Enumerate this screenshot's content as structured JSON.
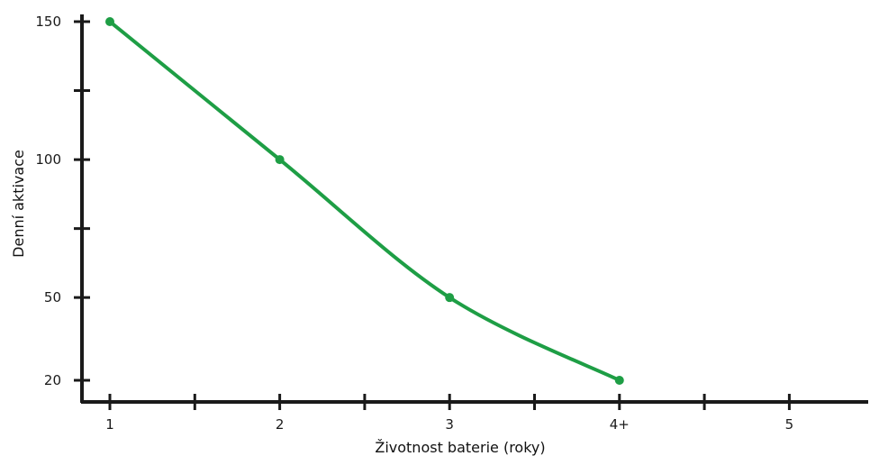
{
  "chart_data": {
    "type": "line",
    "xlabel": "Životnost baterie (roky)",
    "ylabel": "Denní aktivace",
    "x_ticks": [
      {
        "value": 1,
        "label": "1"
      },
      {
        "value": 2,
        "label": "2"
      },
      {
        "value": 3,
        "label": "3"
      },
      {
        "value": 4,
        "label": "4+"
      },
      {
        "value": 5,
        "label": "5"
      }
    ],
    "y_ticks": [
      {
        "value": 20,
        "label": "20"
      },
      {
        "value": 50,
        "label": "50"
      },
      {
        "value": 100,
        "label": "100"
      },
      {
        "value": 150,
        "label": "150"
      }
    ],
    "y_minor_ticks": [
      75,
      125
    ],
    "x_minor_ticks": [
      1.5,
      2.5,
      3.5,
      4.5
    ],
    "series": [
      {
        "x": [
          1,
          2,
          3,
          4
        ],
        "y": [
          150,
          100,
          50,
          20
        ],
        "color": "#1e9e45"
      }
    ],
    "grid": false,
    "legend": "none"
  }
}
